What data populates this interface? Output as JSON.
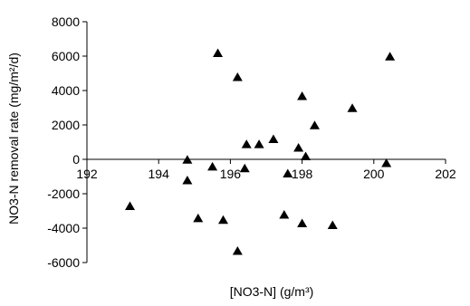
{
  "chart_data": {
    "type": "scatter",
    "title": "",
    "xlabel": "[NO3-N] (g/m³)",
    "ylabel": "NO3-N removal rate (mg/m²/d)",
    "xlim": [
      192,
      202
    ],
    "ylim": [
      -6000,
      8000
    ],
    "x_ticks": [
      "192",
      "194",
      "196",
      "198",
      "200",
      "202"
    ],
    "y_ticks": [
      "8000",
      "6000",
      "4000",
      "2000",
      "0",
      "-2000",
      "-4000",
      "-6000"
    ],
    "x_tick_values": [
      192,
      194,
      196,
      198,
      200,
      202
    ],
    "y_tick_values": [
      8000,
      6000,
      4000,
      2000,
      0,
      -2000,
      -4000,
      -6000
    ],
    "grid": false,
    "legend": "none",
    "marker": "triangle",
    "marker_color": "#000000",
    "series": [
      {
        "x": [
          193.2,
          194.8,
          194.8,
          195.1,
          195.5,
          195.65,
          195.8,
          196.2,
          196.2,
          196.4,
          196.45,
          196.8,
          197.2,
          197.5,
          197.6,
          197.9,
          198.0,
          198.0,
          198.1,
          198.35,
          198.85,
          199.4,
          200.35,
          200.45
        ],
        "y": [
          -2700,
          0,
          -1200,
          -3400,
          -400,
          6200,
          -3500,
          -5300,
          4800,
          -500,
          900,
          900,
          1200,
          -3200,
          -800,
          700,
          3700,
          -3700,
          200,
          2000,
          -3800,
          3000,
          -200,
          6000
        ]
      }
    ]
  }
}
